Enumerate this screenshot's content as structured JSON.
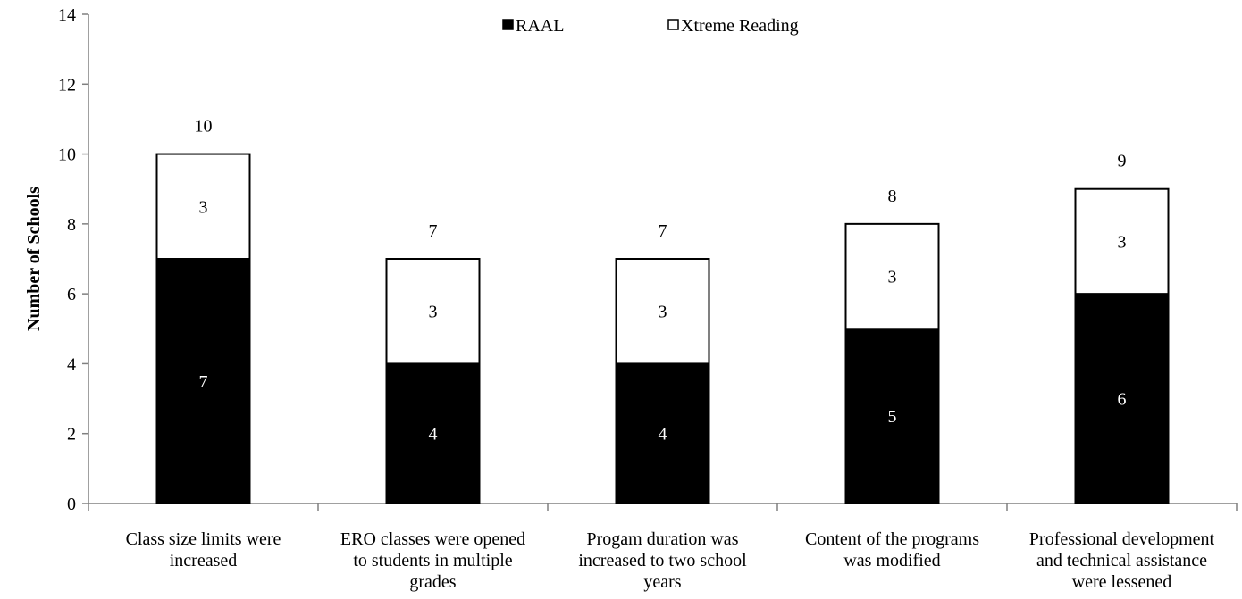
{
  "chart_data": {
    "type": "bar",
    "stacked": true,
    "title": "",
    "xlabel": "",
    "ylabel": "Number of Schools",
    "ylim": [
      0,
      14
    ],
    "yticks": [
      0,
      2,
      4,
      6,
      8,
      10,
      12,
      14
    ],
    "grid": false,
    "legend_position": "top-center",
    "categories": [
      [
        "Class size limits were",
        "increased"
      ],
      [
        "ERO classes were opened",
        "to students in multiple",
        "grades"
      ],
      [
        "Progam duration was",
        "increased to two school",
        "years"
      ],
      [
        "Content of the programs",
        "was modified"
      ],
      [
        "Professional development",
        "and technical assistance",
        "were lessened"
      ]
    ],
    "series": [
      {
        "name": "RAAL",
        "values": [
          7,
          4,
          4,
          5,
          6
        ],
        "color": "#000000",
        "label_color": "#ffffff"
      },
      {
        "name": "Xtreme Reading",
        "values": [
          3,
          3,
          3,
          3,
          3
        ],
        "color": "#ffffff",
        "label_color": "#000000"
      }
    ],
    "totals": [
      10,
      7,
      7,
      8,
      9
    ]
  }
}
